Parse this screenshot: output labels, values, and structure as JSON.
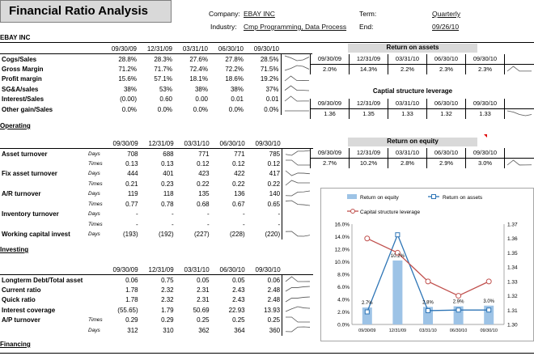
{
  "title": "Financial Ratio Analysis",
  "header": {
    "company_label": "Company:",
    "company_value": "EBAY INC",
    "industry_label": "Industry:",
    "industry_value": "Cmp Programming, Data Process",
    "term_label": "Term:",
    "term_value": "Quarterly",
    "end_label": "End:",
    "end_value": "09/26/10"
  },
  "company_short": "EBAY INC",
  "dates": [
    "09/30/09",
    "12/31/09",
    "03/31/10",
    "06/30/10",
    "09/30/10"
  ],
  "profit": {
    "rows": [
      {
        "label": "Cogs/Sales",
        "v": [
          "28.8%",
          "28.3%",
          "27.6%",
          "27.8%",
          "28.5%"
        ]
      },
      {
        "label": "Gross Margin",
        "v": [
          "71.2%",
          "71.7%",
          "72.4%",
          "72.2%",
          "71.5%"
        ]
      },
      {
        "label": "Profit margin",
        "v": [
          "15.6%",
          "57.1%",
          "18.1%",
          "18.6%",
          "19.2%"
        ]
      },
      {
        "label": "SG&A/sales",
        "v": [
          "38%",
          "53%",
          "38%",
          "38%",
          "37%"
        ]
      },
      {
        "label": "Interest/Sales",
        "v": [
          "(0.00)",
          "0.60",
          "0.00",
          "0.01",
          "0.01"
        ]
      },
      {
        "label": "Other gain/Sales",
        "v": [
          "0.0%",
          "0.0%",
          "0.0%",
          "0.0%",
          "0.0%"
        ]
      }
    ]
  },
  "operating_label": "Operating",
  "operating": {
    "rows": [
      {
        "label": "Asset turnover",
        "sub": "Days",
        "v": [
          "708",
          "688",
          "771",
          "771",
          "785"
        ]
      },
      {
        "label": "",
        "sub": "Times",
        "v": [
          "0.13",
          "0.13",
          "0.12",
          "0.12",
          "0.12"
        ]
      },
      {
        "label": "Fix asset turnover",
        "sub": "Days",
        "v": [
          "444",
          "401",
          "423",
          "422",
          "417"
        ]
      },
      {
        "label": "",
        "sub": "Times",
        "v": [
          "0.21",
          "0.23",
          "0.22",
          "0.22",
          "0.22"
        ]
      },
      {
        "label": "A/R turnover",
        "sub": "Days",
        "v": [
          "119",
          "118",
          "135",
          "136",
          "140"
        ]
      },
      {
        "label": "",
        "sub": "Times",
        "v": [
          "0.77",
          "0.78",
          "0.68",
          "0.67",
          "0.65"
        ]
      },
      {
        "label": "Inventory turnover",
        "sub": "Days",
        "v": [
          "-",
          "-",
          "-",
          "-",
          "-"
        ]
      },
      {
        "label": "",
        "sub": "Times",
        "v": [
          "-",
          "-",
          "-",
          "-",
          "-"
        ]
      },
      {
        "label": "Working capital invest",
        "sub": "Days",
        "v": [
          "(193)",
          "(192)",
          "(227)",
          "(228)",
          "(220)"
        ]
      }
    ]
  },
  "investing_label": "Investing",
  "investing": {
    "rows": [
      {
        "label": "Longterm Debt/Total asset",
        "sub": "",
        "v": [
          "0.06",
          "0.75",
          "0.05",
          "0.05",
          "0.06"
        ]
      },
      {
        "label": "Current ratio",
        "sub": "",
        "v": [
          "1.78",
          "2.32",
          "2.31",
          "2.43",
          "2.48"
        ]
      },
      {
        "label": "Quick ratio",
        "sub": "",
        "v": [
          "1.78",
          "2.32",
          "2.31",
          "2.43",
          "2.48"
        ]
      },
      {
        "label": "Interest coverage",
        "sub": "",
        "v": [
          "(55.65)",
          "1.79",
          "50.69",
          "22.93",
          "13.93"
        ]
      },
      {
        "label": "A/P turnover",
        "sub": "Times",
        "v": [
          "0.29",
          "0.29",
          "0.25",
          "0.25",
          "0.25"
        ]
      },
      {
        "label": "",
        "sub": "Days",
        "v": [
          "312",
          "310",
          "362",
          "364",
          "360"
        ]
      }
    ]
  },
  "financing_label": "Financing",
  "roa": {
    "title": "Return on assets",
    "v": [
      "2.0%",
      "14.3%",
      "2.2%",
      "2.3%",
      "2.3%"
    ]
  },
  "csl": {
    "title": "Captial structure leverage",
    "v": [
      "1.36",
      "1.35",
      "1.33",
      "1.32",
      "1.33"
    ]
  },
  "roe": {
    "title": "Return on equity",
    "v": [
      "2.7%",
      "10.2%",
      "2.8%",
      "2.9%",
      "3.0%"
    ]
  },
  "chart_data": {
    "type": "bar",
    "categories": [
      "09/30/09",
      "12/31/09",
      "03/31/10",
      "06/30/10",
      "09/30/10"
    ],
    "series": [
      {
        "name": "Return on equity",
        "type": "bar",
        "values": [
          2.7,
          10.2,
          2.8,
          2.9,
          3.0
        ],
        "axis": "left",
        "color": "#9dc3e6"
      },
      {
        "name": "Return on assets",
        "type": "line",
        "values": [
          2.0,
          14.3,
          2.2,
          2.3,
          2.3
        ],
        "axis": "left",
        "color": "#2e75b6"
      },
      {
        "name": "Capital structure leverage",
        "type": "line",
        "values": [
          1.36,
          1.35,
          1.33,
          1.32,
          1.33
        ],
        "axis": "right",
        "color": "#c0504d"
      }
    ],
    "legend": [
      "Return on equity",
      "Return on assets",
      "Capital structure leverage"
    ],
    "data_labels": [
      "2.7%",
      "10.2%",
      "2.8%",
      "2.9%",
      "3.0%"
    ],
    "yticks_left": [
      "0.0%",
      "2.0%",
      "4.0%",
      "6.0%",
      "8.0%",
      "10.0%",
      "12.0%",
      "14.0%",
      "16.0%"
    ],
    "yticks_right": [
      "1.30",
      "1.31",
      "1.32",
      "1.33",
      "1.34",
      "1.35",
      "1.36",
      "1.37"
    ],
    "ylim_left": [
      0,
      16
    ],
    "ylim_right": [
      1.3,
      1.37
    ],
    "grid": false,
    "legend_position": "top"
  }
}
